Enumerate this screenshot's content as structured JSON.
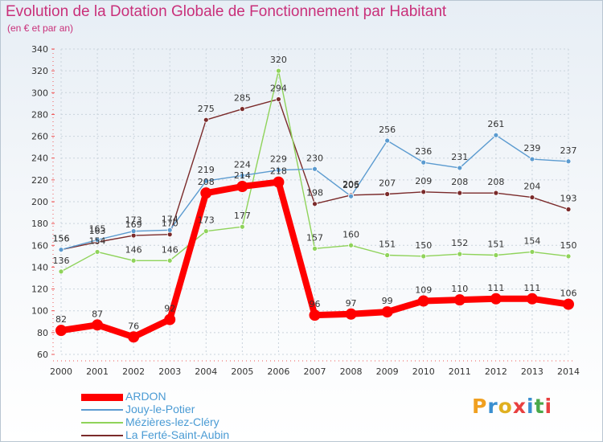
{
  "title": "Evolution de la Dotation Globale de Fonctionnement par Habitant",
  "subtitle": "(en € et par an)",
  "logo_text": "Proxiti",
  "chart_data": {
    "type": "line",
    "title": "Evolution de la Dotation Globale de Fonctionnement par Habitant",
    "ylabel": "(en € et par an)",
    "xlabel": "",
    "ylim": [
      60,
      340
    ],
    "ytick_step": 20,
    "categories": [
      "2000",
      "2001",
      "2002",
      "2003",
      "2004",
      "2005",
      "2006",
      "2007",
      "2008",
      "2009",
      "2010",
      "2011",
      "2012",
      "2013",
      "2014"
    ],
    "series": [
      {
        "name": "ARDON",
        "color": "#ff0000",
        "values": [
          82,
          87,
          76,
          92,
          208,
          214,
          218,
          96,
          97,
          99,
          109,
          110,
          111,
          111,
          106
        ]
      },
      {
        "name": "Jouy-le-Potier",
        "color": "#5b9bd0",
        "values": [
          156,
          165,
          173,
          174,
          219,
          224,
          229,
          230,
          205,
          256,
          236,
          231,
          261,
          239,
          237
        ]
      },
      {
        "name": "Mézières-lez-Cléry",
        "color": "#8fd35a",
        "values": [
          136,
          154,
          146,
          146,
          173,
          177,
          320,
          157,
          160,
          151,
          150,
          152,
          151,
          154,
          150
        ]
      },
      {
        "name": "La Ferté-Saint-Aubin",
        "color": "#7a2a2a",
        "values": [
          156,
          163,
          169,
          170,
          275,
          285,
          294,
          198,
          206,
          207,
          209,
          208,
          208,
          204,
          193
        ]
      }
    ]
  }
}
